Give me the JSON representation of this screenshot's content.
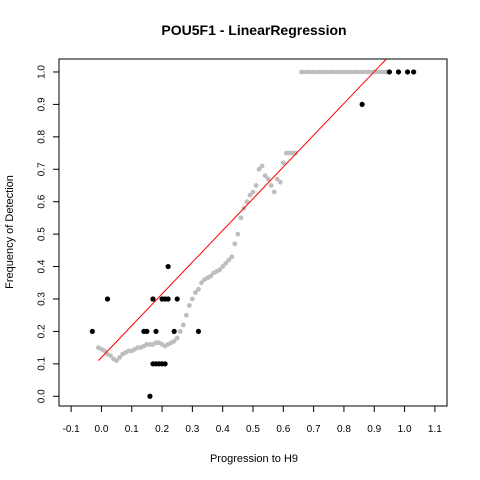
{
  "chart_data": {
    "type": "scatter",
    "title": "POU5F1 - LinearRegression",
    "xlabel": "Progression to H9",
    "ylabel": "Frequency of Detection",
    "xlim": [
      -0.14,
      1.14
    ],
    "ylim": [
      -0.03,
      1.04
    ],
    "x_ticks": [
      -0.1,
      0.0,
      0.1,
      0.2,
      0.3,
      0.4,
      0.5,
      0.6,
      0.7,
      0.8,
      0.9,
      1.0,
      1.1
    ],
    "x_tick_labels": [
      "-0.1",
      "0.0",
      "0.1",
      "0.2",
      "0.3",
      "0.4",
      "0.5",
      "0.6",
      "0.7",
      "0.8",
      "0.9",
      "1.0",
      "1.1"
    ],
    "y_ticks": [
      0.0,
      0.1,
      0.2,
      0.3,
      0.4,
      0.5,
      0.6,
      0.7,
      0.8,
      0.9,
      1.0
    ],
    "y_tick_labels": [
      "0.0",
      "0.1",
      "0.2",
      "0.3",
      "0.4",
      "0.5",
      "0.6",
      "0.7",
      "0.8",
      "0.9",
      "1.0"
    ],
    "grid": false,
    "colors": {
      "smooth": "#bebebe",
      "observed": "#000000",
      "regression": "#ff0000"
    },
    "series": [
      {
        "kind": "smooth",
        "x": [
          -0.01,
          0.0,
          0.01,
          0.02,
          0.03,
          0.04,
          0.05,
          0.06,
          0.07,
          0.08,
          0.09,
          0.1,
          0.11,
          0.12,
          0.13,
          0.14,
          0.15,
          0.16,
          0.17,
          0.18,
          0.19,
          0.2,
          0.21,
          0.22,
          0.23,
          0.24,
          0.25,
          0.26,
          0.27,
          0.28,
          0.29,
          0.3,
          0.31,
          0.32,
          0.33,
          0.34,
          0.35,
          0.36,
          0.37,
          0.38,
          0.39,
          0.4,
          0.41,
          0.42,
          0.43,
          0.44,
          0.45,
          0.46,
          0.47,
          0.48,
          0.49,
          0.5,
          0.51,
          0.52,
          0.53,
          0.54,
          0.55,
          0.56,
          0.57,
          0.58,
          0.59,
          0.6,
          0.61,
          0.62,
          0.63,
          0.64,
          0.66,
          0.68,
          0.7,
          0.72,
          0.74,
          0.76,
          0.78,
          0.8,
          0.82,
          0.84,
          0.86,
          0.88,
          0.9,
          0.92,
          0.94
        ],
        "y": [
          0.15,
          0.145,
          0.14,
          0.13,
          0.125,
          0.115,
          0.11,
          0.12,
          0.13,
          0.135,
          0.14,
          0.14,
          0.145,
          0.15,
          0.15,
          0.155,
          0.16,
          0.16,
          0.16,
          0.165,
          0.165,
          0.16,
          0.155,
          0.16,
          0.165,
          0.17,
          0.18,
          0.2,
          0.22,
          0.25,
          0.28,
          0.3,
          0.32,
          0.33,
          0.35,
          0.36,
          0.365,
          0.37,
          0.38,
          0.385,
          0.39,
          0.4,
          0.41,
          0.42,
          0.43,
          0.47,
          0.5,
          0.55,
          0.58,
          0.6,
          0.62,
          0.63,
          0.65,
          0.7,
          0.71,
          0.68,
          0.67,
          0.65,
          0.63,
          0.67,
          0.66,
          0.72,
          0.75,
          0.75,
          0.75,
          0.75,
          1.0,
          1.0,
          1.0,
          1.0,
          1.0,
          1.0,
          1.0,
          1.0,
          1.0,
          1.0,
          1.0,
          1.0,
          1.0,
          1.0,
          1.0
        ]
      },
      {
        "kind": "observed",
        "x": [
          -0.03,
          0.02,
          0.14,
          0.15,
          0.16,
          0.17,
          0.17,
          0.18,
          0.18,
          0.19,
          0.2,
          0.2,
          0.21,
          0.21,
          0.22,
          0.22,
          0.24,
          0.25,
          0.32,
          0.86,
          0.95,
          0.98,
          1.01,
          1.03
        ],
        "y": [
          0.2,
          0.3,
          0.2,
          0.2,
          0.0,
          0.1,
          0.3,
          0.2,
          0.1,
          0.1,
          0.3,
          0.1,
          0.3,
          0.1,
          0.3,
          0.4,
          0.2,
          0.3,
          0.2,
          0.9,
          1.0,
          1.0,
          1.0,
          1.0
        ]
      },
      {
        "kind": "regression",
        "x": [
          -0.01,
          0.94
        ],
        "y": [
          0.11,
          1.04
        ]
      }
    ]
  }
}
